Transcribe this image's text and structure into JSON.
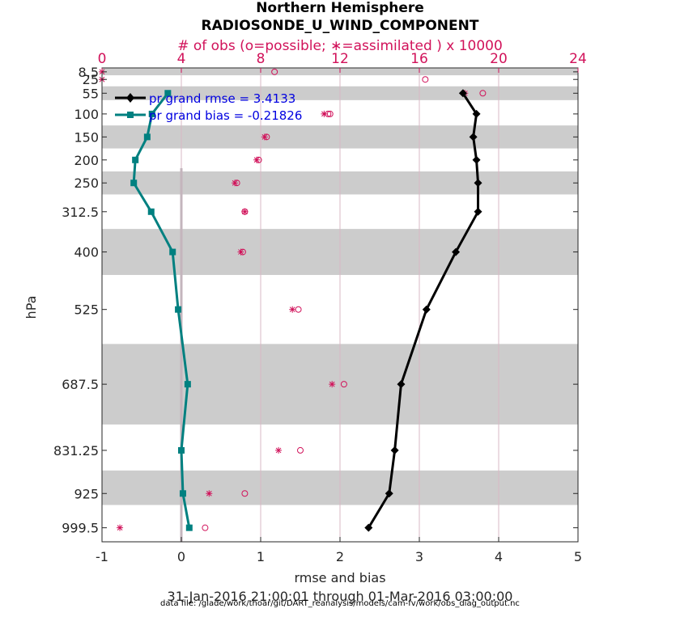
{
  "chart_data": {
    "type": "line",
    "title": "Northern Hemisphere",
    "subtitle": "RADIOSONDE_U_WIND_COMPONENT",
    "top_axis_label": "# of obs (o=possible; ∗=assimilated ) x 10000",
    "xlabel": "rmse and bias",
    "ylabel": "hPa",
    "date_range": "31-Jan-2016 21:00:01 through 01-Mar-2016 03:00:00",
    "footnote": "data file: /glade/work/thoar/git/DART_reanalysis/models/cam-fv/work/obs_diag_output.nc",
    "xlim": [
      -1,
      5
    ],
    "x_ticks": [
      "-1",
      "0",
      "1",
      "2",
      "3",
      "4",
      "5"
    ],
    "top_xlim": [
      0,
      24
    ],
    "top_ticks": [
      "0",
      "4",
      "8",
      "12",
      "16",
      "20",
      "24"
    ],
    "ylim": [
      1030,
      0
    ],
    "y_ticks": [
      "8.5",
      "25",
      "55",
      "100",
      "150",
      "200",
      "250",
      "312.5",
      "400",
      "525",
      "687.5",
      "831.25",
      "925",
      "999.5"
    ],
    "levels": [
      8.5,
      25,
      55,
      100,
      150,
      200,
      250,
      312.5,
      400,
      525,
      687.5,
      831.25,
      925,
      999.5
    ],
    "bands": [
      [
        1,
        16
      ],
      [
        40,
        70
      ],
      [
        125,
        175
      ],
      [
        225,
        275
      ],
      [
        350,
        450
      ],
      [
        600,
        775
      ],
      [
        875,
        950
      ]
    ],
    "grid": true,
    "legend_position": "top-left",
    "colors": {
      "rmse": "#000000",
      "bias": "#008080",
      "obs": "#d1125a",
      "zero_line": "#c4b5bd",
      "band": "#cccccc",
      "grid": "#d9b8c4"
    },
    "series": [
      {
        "name": "rmse",
        "legend": "pr grand rmse = 3.4133",
        "marker": "diamond",
        "levels": [
          55,
          100,
          150,
          200,
          250,
          312.5,
          400,
          525,
          687.5,
          831.25,
          925,
          999.5
        ],
        "values": [
          3.55,
          3.72,
          3.68,
          3.72,
          3.74,
          3.74,
          3.46,
          3.09,
          2.77,
          2.69,
          2.62,
          2.36
        ]
      },
      {
        "name": "bias",
        "legend": "pr grand bias = -0.21826",
        "marker": "square",
        "levels": [
          55,
          100,
          150,
          200,
          250,
          312.5,
          400,
          525,
          687.5,
          831.25,
          925,
          999.5
        ],
        "values": [
          -0.17,
          -0.37,
          -0.43,
          -0.58,
          -0.6,
          -0.38,
          -0.11,
          -0.04,
          0.08,
          0.0,
          0.02,
          0.1
        ]
      }
    ],
    "obs_possible": {
      "levels": [
        8.5,
        25,
        55,
        100,
        100,
        150,
        200,
        250,
        312.5,
        400,
        525,
        687.5,
        831.25,
        925,
        999.5
      ],
      "values": [
        8.7,
        16.3,
        19.2,
        11.5,
        11.4,
        8.3,
        7.9,
        6.8,
        7.2,
        7.1,
        9.9,
        12.2,
        10.0,
        7.2,
        5.2
      ]
    },
    "obs_assimilated": {
      "levels": [
        8.5,
        25,
        55,
        100,
        150,
        200,
        250,
        312.5,
        400,
        525,
        687.5,
        831.25,
        925,
        999.5
      ],
      "values": [
        0.0,
        0.0,
        18.3,
        11.2,
        8.2,
        7.8,
        6.7,
        7.2,
        7.0,
        9.6,
        11.6,
        8.9,
        5.4,
        0.9
      ]
    }
  }
}
